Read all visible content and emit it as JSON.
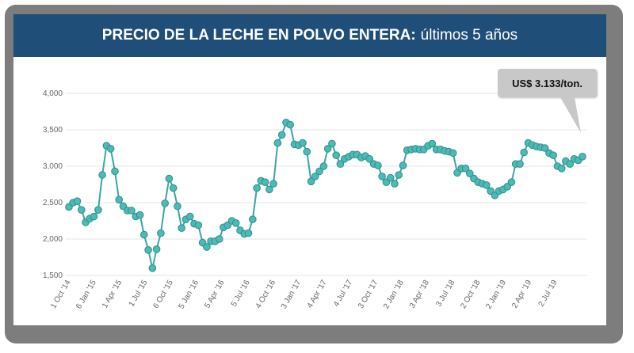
{
  "header": {
    "title_bold": "PRECIO DE LA LECHE EN POLVO ENTERA:",
    "title_rest": "últimos 5 años"
  },
  "callout": {
    "label": "US$ 3.133/ton."
  },
  "colors": {
    "header_bg": "#1f4e79",
    "line": "#3aa6a2",
    "marker": "#4cbab5",
    "callout_bg": "#c8c8c8"
  },
  "chart_data": {
    "type": "line",
    "title": "PRECIO DE LA LECHE EN POLVO ENTERA: últimos 5 años",
    "xlabel": "",
    "ylabel": "",
    "ylim": [
      1500,
      4000
    ],
    "yticks": [
      "1,500",
      "2,000",
      "2,500",
      "3,000",
      "3,500",
      "4,000"
    ],
    "ytick_values": [
      1500,
      2000,
      2500,
      3000,
      3500,
      4000
    ],
    "grid": true,
    "xticks": [
      "1 Oct '14",
      "6 Jan '15",
      "1 Apr '15",
      "1 Jul '15",
      "6 Oct '15",
      "5 Jan '16",
      "5 Apr '16",
      "5 Jul '16",
      "4 Oct '16",
      "3 Jan '17",
      "4 Apr '17",
      "4 Jul '17",
      "3 Oct '17",
      "2 Jan '18",
      "3 Apr '18",
      "3 Jul '18",
      "2 Oct '18",
      "2 Jan '19",
      "2 Apr '19",
      "2 Jul '19"
    ],
    "series": [
      {
        "values": [
          2440,
          2500,
          2520,
          2400,
          2230,
          2280,
          2310,
          2400,
          2880,
          3280,
          3240,
          2930,
          2540,
          2450,
          2390,
          2390,
          2310,
          2330,
          2060,
          1850,
          1600,
          1860,
          2080,
          2490,
          2830,
          2700,
          2450,
          2150,
          2270,
          2310,
          2210,
          2190,
          1950,
          1890,
          1970,
          1970,
          2000,
          2160,
          2190,
          2250,
          2220,
          2120,
          2070,
          2080,
          2270,
          2700,
          2800,
          2780,
          2680,
          2760,
          3320,
          3430,
          3600,
          3570,
          3300,
          3290,
          3320,
          3200,
          2790,
          2860,
          2930,
          3000,
          3240,
          3310,
          3150,
          3030,
          3100,
          3130,
          3160,
          3160,
          3120,
          3140,
          3100,
          3030,
          3010,
          2860,
          2780,
          2840,
          2760,
          2880,
          3010,
          3220,
          3230,
          3240,
          3230,
          3230,
          3280,
          3310,
          3230,
          3230,
          3210,
          3200,
          3180,
          2910,
          2970,
          2970,
          2900,
          2830,
          2780,
          2760,
          2740,
          2660,
          2600,
          2660,
          2680,
          2720,
          2780,
          3030,
          3030,
          3190,
          3320,
          3290,
          3270,
          3260,
          3250,
          3180,
          3150,
          3000,
          2970,
          3070,
          3030,
          3100,
          3080,
          3133
        ]
      }
    ],
    "annotation": "US$ 3.133/ton."
  }
}
